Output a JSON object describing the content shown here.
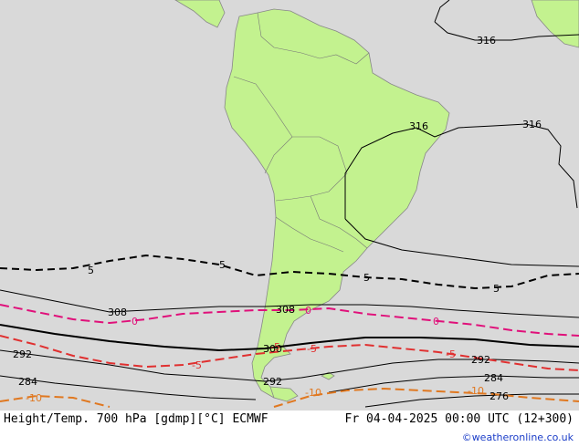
{
  "colors": {
    "ocean": "#d9d9d9",
    "land": "#c3f28f",
    "coast": "#888888",
    "height_contour": "#000000",
    "temp_minus5": "#e03030",
    "temp_0": "#e0107a",
    "temp_minus10": "#e07820",
    "temp_5": "#000000",
    "credit": "#1a3cc8"
  },
  "footer": {
    "title": "Height/Temp. 700 hPa [gdmp][°C] ECMWF",
    "valid_time": "Fr 04-04-2025 00:00 UTC (12+300)",
    "credit": "©weatheronline.co.uk"
  },
  "height_labels": [
    "316",
    "316",
    "316",
    "308",
    "308",
    "300",
    "292",
    "292",
    "292",
    "284",
    "284",
    "276"
  ],
  "temp_labels": [
    "5",
    "5",
    "5",
    "5",
    "0",
    "0",
    "0",
    "-5",
    "-5",
    "-5",
    "-5",
    "-10",
    "-10",
    "-10"
  ]
}
